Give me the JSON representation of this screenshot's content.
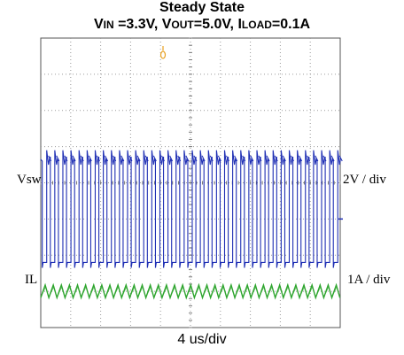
{
  "chart_data": {
    "type": "line",
    "title": "Steady State",
    "subtitle": {
      "vin_prefix": "V",
      "vin_sub": "IN",
      "vin_value": " =3.3V, ",
      "vout_prefix": "V",
      "vout_sub": "OUT",
      "vout_value": "=5.0V, ",
      "iload_prefix": "I",
      "iload_sub": "LOAD",
      "iload_value": "=0.1A"
    },
    "xlabel": "4 us/div",
    "grid": true,
    "divisions": {
      "x": 10,
      "y": 8
    },
    "series": [
      {
        "name": "Vsw",
        "scale": "2V / div",
        "color": "#1f2fb4",
        "period_div": 0.27,
        "low_div": -2.2,
        "high_div": 0.65,
        "offset_div": 0.5
      },
      {
        "name": "IL",
        "scale": "1A / div",
        "color": "#2ea52e",
        "period_div": 0.27,
        "mean_div": -3.0,
        "ripple_pp_div": 0.35
      }
    ],
    "trigger_marker": {
      "color": "#e8a020"
    }
  }
}
